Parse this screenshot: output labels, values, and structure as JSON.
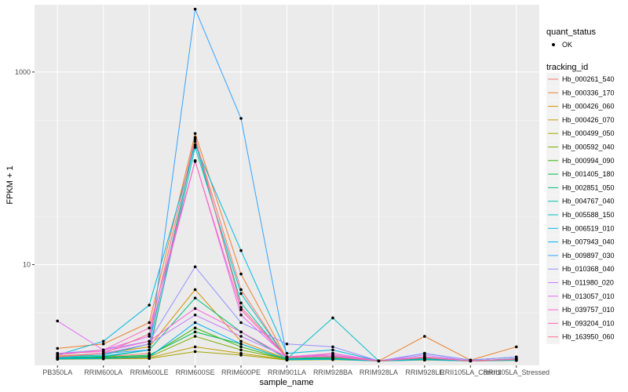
{
  "chart_data": {
    "type": "line",
    "xlabel": "sample_name",
    "ylabel": "FPKM + 1",
    "y_scale": "log10",
    "ylim": [
      0.9,
      5000
    ],
    "y_ticks": [
      10,
      1000
    ],
    "y_tick_labels": [
      "10",
      "1000"
    ],
    "categories": [
      "PB350LA",
      "RRIM600LA",
      "RRIM600LE",
      "RRIM600SE",
      "RRIM600PE",
      "RRIM901LA",
      "RRIM928BA",
      "RRIM928LA",
      "RRIM928LE",
      "RRII105LA_Control",
      "RRII105LA_Stressed"
    ],
    "x_tick_labels": [
      "PB350LA",
      "RRIM600LA",
      "RRIM600LE",
      "RRIM600SE",
      "RRIM600PE",
      "RRIM901LA",
      "RRIM928BA",
      "RRIM928LA",
      "RRIM928LE",
      "RRII105LA_Control",
      "RRII105LA_Stressed"
    ],
    "legend": {
      "quant_status": {
        "title": "quant_status",
        "entries": [
          "OK"
        ]
      },
      "tracking_id": {
        "title": "tracking_id"
      }
    },
    "point_color": "#000000",
    "series": [
      {
        "name": "Hb_000261_540",
        "color": "#F8766D",
        "values": [
          1.08,
          1.1,
          1.2,
          200,
          5.5,
          1.05,
          1.1,
          1.0,
          1.06,
          1.0,
          1.02
        ]
      },
      {
        "name": "Hb_000336_170",
        "color": "#EA8331",
        "values": [
          1.35,
          1.5,
          2.5,
          230,
          8.0,
          1.05,
          1.2,
          1.0,
          1.8,
          1.02,
          1.4
        ]
      },
      {
        "name": "Hb_000426_060",
        "color": "#D89000",
        "values": [
          1.12,
          1.2,
          1.4,
          5.5,
          1.6,
          1.05,
          1.1,
          1.0,
          1.08,
          1.0,
          1.05
        ]
      },
      {
        "name": "Hb_000426_070",
        "color": "#C09B00",
        "values": [
          1.05,
          1.06,
          1.08,
          1.4,
          1.2,
          1.03,
          1.04,
          1.0,
          1.03,
          1.0,
          1.02
        ]
      },
      {
        "name": "Hb_000499_050",
        "color": "#A3A500",
        "values": [
          1.04,
          1.05,
          1.06,
          1.25,
          1.15,
          1.02,
          1.03,
          1.0,
          1.02,
          1.0,
          1.01
        ]
      },
      {
        "name": "Hb_000592_040",
        "color": "#7CAE00",
        "values": [
          1.06,
          1.08,
          1.1,
          1.8,
          1.3,
          1.04,
          1.05,
          1.0,
          1.04,
          1.0,
          1.03
        ]
      },
      {
        "name": "Hb_000994_090",
        "color": "#39B600",
        "values": [
          1.05,
          1.07,
          1.12,
          2.2,
          1.4,
          1.03,
          1.05,
          1.0,
          1.03,
          1.0,
          1.02
        ]
      },
      {
        "name": "Hb_001405_180",
        "color": "#00BB4E",
        "values": [
          1.07,
          1.09,
          1.15,
          2.0,
          1.5,
          1.04,
          1.06,
          1.0,
          1.05,
          1.0,
          1.03
        ]
      },
      {
        "name": "Hb_002851_050",
        "color": "#00BF7D",
        "values": [
          1.06,
          1.1,
          1.3,
          4.5,
          2.0,
          1.05,
          1.08,
          1.0,
          1.05,
          1.0,
          1.04
        ]
      },
      {
        "name": "Hb_004767_040",
        "color": "#00C1A3",
        "values": [
          1.1,
          1.15,
          1.5,
          190,
          4.0,
          1.06,
          1.1,
          1.0,
          1.07,
          1.0,
          1.06
        ]
      },
      {
        "name": "Hb_005588_150",
        "color": "#00BFC4",
        "values": [
          1.08,
          1.12,
          1.3,
          165,
          5.0,
          1.05,
          2.8,
          1.0,
          1.1,
          1.0,
          1.05
        ]
      },
      {
        "name": "Hb_006519_010",
        "color": "#00BAE0",
        "values": [
          1.15,
          1.6,
          3.8,
          175,
          14.0,
          1.2,
          1.3,
          1.0,
          1.2,
          1.02,
          1.1
        ]
      },
      {
        "name": "Hb_007943_040",
        "color": "#00B0F6",
        "values": [
          1.05,
          1.06,
          1.1,
          2.5,
          1.5,
          1.03,
          1.04,
          1.0,
          1.03,
          1.0,
          1.02
        ]
      },
      {
        "name": "Hb_009897_030",
        "color": "#35A2FF",
        "values": [
          1.1,
          1.2,
          1.3,
          4500,
          330,
          1.1,
          1.15,
          1.0,
          1.1,
          1.0,
          1.05
        ]
      },
      {
        "name": "Hb_010368_040",
        "color": "#9590FF",
        "values": [
          1.2,
          1.3,
          1.6,
          9.5,
          2.5,
          1.5,
          1.4,
          1.0,
          1.2,
          1.02,
          1.1
        ]
      },
      {
        "name": "Hb_011980_020",
        "color": "#C77CFF",
        "values": [
          1.1,
          1.2,
          1.5,
          3.0,
          1.8,
          1.1,
          1.2,
          1.0,
          1.15,
          1.0,
          1.05
        ]
      },
      {
        "name": "Hb_013057_010",
        "color": "#E76BF3",
        "values": [
          2.6,
          1.3,
          1.8,
          120,
          3.0,
          1.1,
          1.15,
          1.0,
          1.1,
          1.0,
          1.05
        ]
      },
      {
        "name": "Hb_039757_010",
        "color": "#FA62DB",
        "values": [
          1.2,
          1.25,
          1.6,
          3.5,
          2.0,
          1.1,
          1.2,
          1.0,
          1.1,
          1.0,
          1.05
        ]
      },
      {
        "name": "Hb_093204_010",
        "color": "#FF62BC",
        "values": [
          1.15,
          1.3,
          2.2,
          118,
          3.4,
          1.08,
          1.12,
          1.0,
          1.09,
          1.0,
          1.05
        ]
      },
      {
        "name": "Hb_163950_060",
        "color": "#FF6C91",
        "values": [
          1.1,
          1.2,
          1.9,
          210,
          3.6,
          1.1,
          1.1,
          1.0,
          1.08,
          1.0,
          1.04
        ]
      }
    ]
  }
}
